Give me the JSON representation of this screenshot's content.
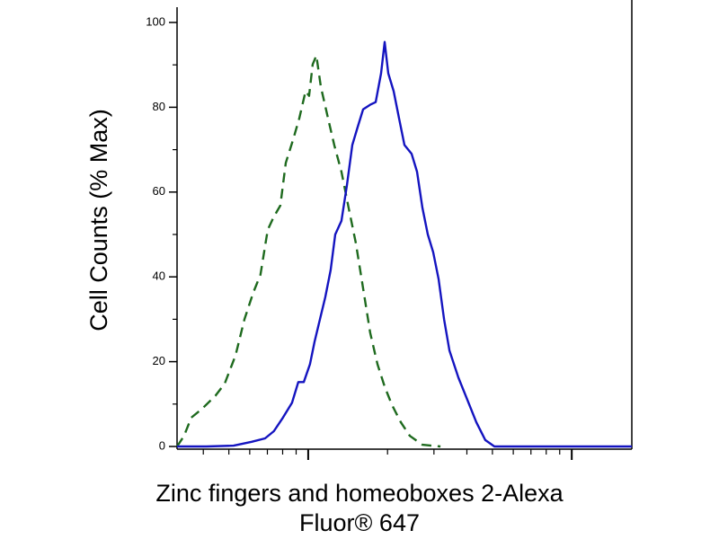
{
  "chart_data": {
    "type": "line",
    "ylabel": "Cell Counts (% Max)",
    "xlabel": [
      "Zinc fingers and homeoboxes 2-Alexa",
      "Fluor® 647"
    ],
    "xscale": "log",
    "xlim": [
      0.318,
      16.9
    ],
    "xticks": [
      1,
      10
    ],
    "xminorticks": [
      0.4,
      0.5,
      0.6,
      0.7,
      0.8,
      0.9,
      2,
      3,
      4,
      5,
      6,
      7,
      8,
      9
    ],
    "ylim": [
      0,
      100
    ],
    "yticks": [
      0,
      20,
      40,
      60,
      80,
      100
    ],
    "yminorticks": [
      10,
      30,
      50,
      70,
      90
    ],
    "series": [
      {
        "color": "#1e6a1e",
        "dash": true,
        "x": [
          0.318,
          0.338,
          0.36,
          0.396,
          0.445,
          0.482,
          0.53,
          0.573,
          0.619,
          0.659,
          0.702,
          0.741,
          0.784,
          0.822,
          0.875,
          0.925,
          0.977,
          1.008,
          1.04,
          1.074,
          1.117,
          1.189,
          1.256,
          1.337,
          1.424,
          1.517,
          1.615,
          1.719,
          1.831,
          1.95,
          2.076,
          2.246,
          2.43,
          2.713,
          3.175
        ],
        "values": [
          0,
          2.5,
          6.8,
          8.9,
          12.0,
          14.8,
          21.5,
          30.0,
          36.3,
          40.5,
          51.1,
          54.2,
          56.8,
          66.9,
          72.2,
          77.4,
          83.8,
          82.7,
          90.1,
          92.2,
          84.8,
          77.4,
          71.1,
          64.8,
          56.3,
          47.9,
          37.3,
          26.8,
          19.4,
          14.1,
          9.9,
          5.7,
          2.5,
          0.4,
          0
        ]
      },
      {
        "color": "#1414c0",
        "dash": false,
        "x": [
          0.318,
          0.411,
          0.521,
          0.61,
          0.686,
          0.741,
          0.802,
          0.868,
          0.917,
          0.962,
          1.016,
          1.057,
          1.108,
          1.161,
          1.217,
          1.266,
          1.337,
          1.402,
          1.47,
          1.54,
          1.615,
          1.719,
          1.803,
          1.89,
          1.95,
          2.013,
          2.11,
          2.212,
          2.319,
          2.469,
          2.588,
          2.713,
          2.844,
          2.981,
          3.125,
          3.277,
          3.435,
          3.715,
          4.018,
          4.345,
          4.699,
          5.088,
          7.536,
          16.9
        ],
        "values": [
          0,
          0,
          0.2,
          1.1,
          1.9,
          3.6,
          6.8,
          10.3,
          15.2,
          15.2,
          19.4,
          24.7,
          30.0,
          35.2,
          41.6,
          50.0,
          53.2,
          61.6,
          71.1,
          75.3,
          79.5,
          80.6,
          81.2,
          88.0,
          95.4,
          88.0,
          83.8,
          77.4,
          71.1,
          69.0,
          64.8,
          56.3,
          50.0,
          45.8,
          39.5,
          30.0,
          22.6,
          16.2,
          11.0,
          5.7,
          1.5,
          0,
          0,
          0
        ]
      }
    ]
  }
}
